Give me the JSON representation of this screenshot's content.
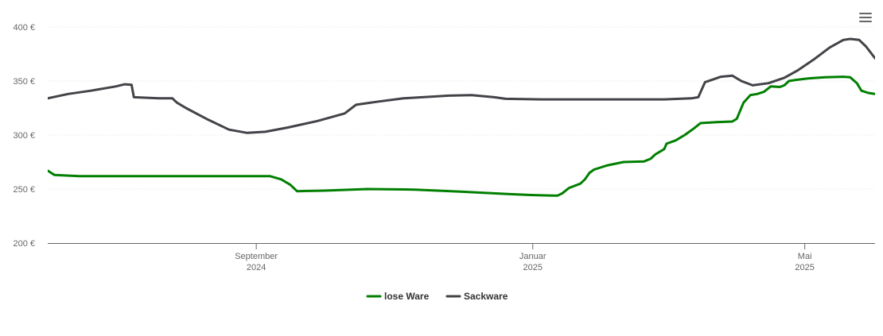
{
  "chart_data": {
    "type": "line",
    "title": "",
    "xlabel": "",
    "ylabel": "",
    "ylim": [
      200,
      400
    ],
    "y_ticks": [
      {
        "value": 400,
        "label": "400 €"
      },
      {
        "value": 350,
        "label": "350 €"
      },
      {
        "value": 300,
        "label": "300 €"
      },
      {
        "value": 250,
        "label": "250 €"
      },
      {
        "value": 200,
        "label": "200 €"
      }
    ],
    "xlim": [
      "2024-06-01",
      "2025-06-01"
    ],
    "x_ticks": [
      {
        "date": "2024-09-01",
        "month": "September",
        "year": "2024"
      },
      {
        "date": "2025-01-01",
        "month": "Januar",
        "year": "2025"
      },
      {
        "date": "2025-05-01",
        "month": "Mai",
        "year": "2025"
      }
    ],
    "grid": true,
    "legend": "bottom-center",
    "series": [
      {
        "name": "lose Ware",
        "color": "#007f00",
        "points": [
          [
            "2024-06-01",
            267
          ],
          [
            "2024-06-04",
            263
          ],
          [
            "2024-06-15",
            262
          ],
          [
            "2024-07-15",
            262
          ],
          [
            "2024-08-15",
            262
          ],
          [
            "2024-09-01",
            262
          ],
          [
            "2024-09-07",
            262
          ],
          [
            "2024-09-12",
            259
          ],
          [
            "2024-09-16",
            254
          ],
          [
            "2024-09-19",
            248
          ],
          [
            "2024-10-01",
            248.5
          ],
          [
            "2024-10-20",
            250
          ],
          [
            "2024-11-10",
            249.5
          ],
          [
            "2024-12-01",
            247.5
          ],
          [
            "2024-12-20",
            245.5
          ],
          [
            "2024-12-31",
            244.5
          ],
          [
            "2025-01-10",
            244
          ],
          [
            "2025-01-12",
            244
          ],
          [
            "2025-01-14",
            246
          ],
          [
            "2025-01-17",
            251
          ],
          [
            "2025-01-22",
            255
          ],
          [
            "2025-01-24",
            259
          ],
          [
            "2025-01-26",
            265
          ],
          [
            "2025-01-28",
            268
          ],
          [
            "2025-02-03",
            272
          ],
          [
            "2025-02-10",
            275
          ],
          [
            "2025-02-19",
            275.5
          ],
          [
            "2025-02-22",
            278
          ],
          [
            "2025-02-24",
            282
          ],
          [
            "2025-02-28",
            287
          ],
          [
            "2025-03-01",
            292
          ],
          [
            "2025-03-05",
            295
          ],
          [
            "2025-03-09",
            300
          ],
          [
            "2025-03-13",
            306
          ],
          [
            "2025-03-16",
            311
          ],
          [
            "2025-03-23",
            312
          ],
          [
            "2025-03-30",
            312.5
          ],
          [
            "2025-04-01",
            315
          ],
          [
            "2025-04-04",
            330
          ],
          [
            "2025-04-07",
            337
          ],
          [
            "2025-04-10",
            338
          ],
          [
            "2025-04-13",
            340
          ],
          [
            "2025-04-16",
            345
          ],
          [
            "2025-04-20",
            344.5
          ],
          [
            "2025-04-22",
            346
          ],
          [
            "2025-04-24",
            350
          ],
          [
            "2025-04-27",
            351
          ],
          [
            "2025-05-03",
            352.5
          ],
          [
            "2025-05-10",
            353.5
          ],
          [
            "2025-05-18",
            354
          ],
          [
            "2025-05-21",
            353.5
          ],
          [
            "2025-05-24",
            348
          ],
          [
            "2025-05-26",
            341
          ],
          [
            "2025-05-29",
            339
          ],
          [
            "2025-06-01",
            338
          ]
        ]
      },
      {
        "name": "Sackware",
        "color": "#434348",
        "points": [
          [
            "2024-06-01",
            334
          ],
          [
            "2024-06-10",
            338
          ],
          [
            "2024-06-20",
            341
          ],
          [
            "2024-07-01",
            345
          ],
          [
            "2024-07-05",
            347
          ],
          [
            "2024-07-08",
            346.5
          ],
          [
            "2024-07-09",
            335
          ],
          [
            "2024-07-20",
            334
          ],
          [
            "2024-07-26",
            334
          ],
          [
            "2024-07-28",
            330
          ],
          [
            "2024-08-01",
            325
          ],
          [
            "2024-08-10",
            315
          ],
          [
            "2024-08-20",
            305
          ],
          [
            "2024-08-28",
            302
          ],
          [
            "2024-09-05",
            303
          ],
          [
            "2024-09-15",
            307
          ],
          [
            "2024-09-28",
            313
          ],
          [
            "2024-10-10",
            320
          ],
          [
            "2024-10-15",
            328
          ],
          [
            "2024-10-25",
            331
          ],
          [
            "2024-11-05",
            334
          ],
          [
            "2024-11-25",
            336.5
          ],
          [
            "2024-12-05",
            337
          ],
          [
            "2024-12-15",
            335
          ],
          [
            "2024-12-20",
            333.5
          ],
          [
            "2025-01-05",
            333
          ],
          [
            "2025-02-05",
            333
          ],
          [
            "2025-02-28",
            333
          ],
          [
            "2025-03-12",
            334
          ],
          [
            "2025-03-15",
            335
          ],
          [
            "2025-03-18",
            349
          ],
          [
            "2025-03-21",
            351
          ],
          [
            "2025-03-25",
            354
          ],
          [
            "2025-03-30",
            355
          ],
          [
            "2025-04-03",
            350
          ],
          [
            "2025-04-08",
            346
          ],
          [
            "2025-04-15",
            348
          ],
          [
            "2025-04-22",
            353
          ],
          [
            "2025-04-28",
            360
          ],
          [
            "2025-05-05",
            370
          ],
          [
            "2025-05-12",
            381
          ],
          [
            "2025-05-18",
            388
          ],
          [
            "2025-05-21",
            389
          ],
          [
            "2025-05-25",
            388
          ],
          [
            "2025-05-28",
            382
          ],
          [
            "2025-06-01",
            371
          ]
        ]
      }
    ]
  },
  "ui": {
    "menu_icon": "hamburger-menu-icon"
  }
}
